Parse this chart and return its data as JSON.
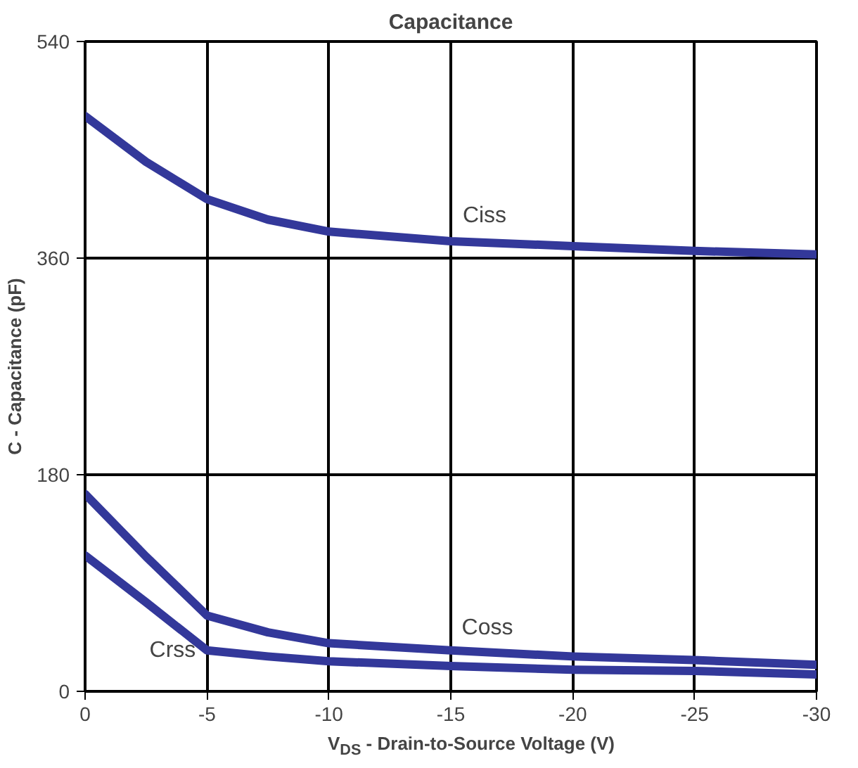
{
  "chart_data": {
    "type": "line",
    "title": "Capacitance",
    "xlabel": "V$_{DS}$ - Drain-to-Source Voltage (V)",
    "ylabel": "C - Capacitance (pF)",
    "x": [
      0,
      -2.5,
      -5,
      -7.5,
      -10,
      -15,
      -20,
      -25,
      -30
    ],
    "series": [
      {
        "name": "Ciss",
        "color": "#33389a",
        "values": [
          478,
          440,
          409,
          392,
          382,
          374,
          370,
          366,
          363
        ]
      },
      {
        "name": "Coss",
        "color": "#33389a",
        "values": [
          164,
          112,
          63,
          49,
          40,
          34,
          29,
          26,
          22
        ]
      },
      {
        "name": "Crss",
        "color": "#33389a",
        "values": [
          113,
          74,
          34,
          29,
          25,
          21,
          18,
          17,
          14
        ]
      }
    ],
    "xlim": [
      0,
      -30
    ],
    "ylim": [
      0,
      540
    ],
    "xticks": [
      0,
      -5,
      -10,
      -15,
      -20,
      -25,
      -30
    ],
    "yticks": [
      0,
      180,
      360,
      540
    ],
    "grid": true,
    "line_style": "solid",
    "marker": "none"
  }
}
